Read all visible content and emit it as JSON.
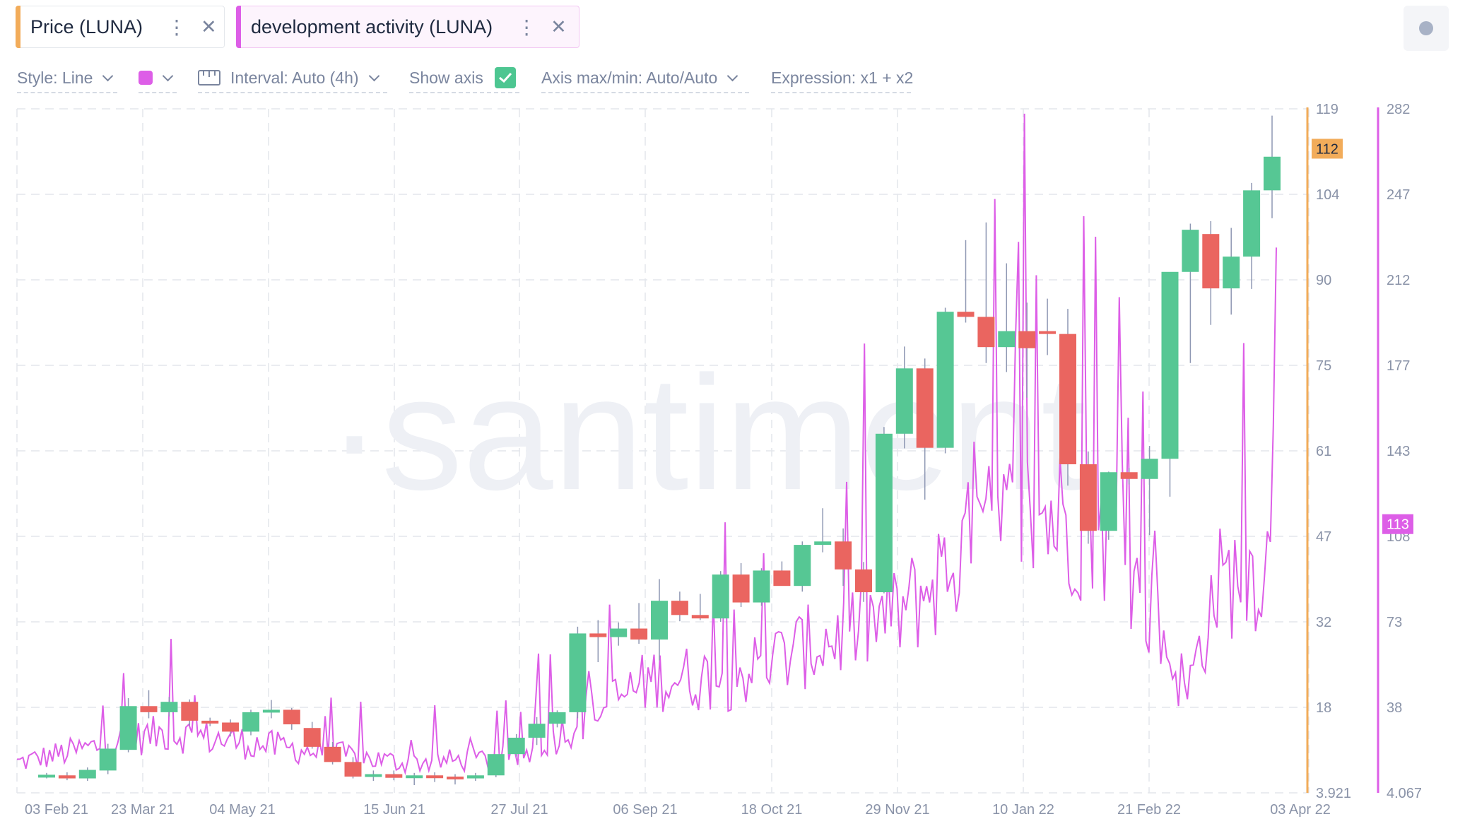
{
  "tabs": [
    {
      "label": "Price (LUNA)",
      "accent": "#f2ac5a"
    },
    {
      "label": "development activity (LUNA)",
      "accent": "#dd5ee7"
    }
  ],
  "toolbar": {
    "style": "Style: Line",
    "swatch_color": "#dd5ee7",
    "interval": "Interval: Auto (4h)",
    "show_axis": "Show axis",
    "show_axis_checked": true,
    "axis_maxmin": "Axis max/min: Auto/Auto",
    "expression": "Expression: x1 + x2"
  },
  "watermark": "·santiment",
  "chart_data": {
    "type": "candlestick+line",
    "x_labels": [
      "03 Feb 21",
      "23 Mar 21",
      "04 May 21",
      "15 Jun 21",
      "27 Jul 21",
      "06 Sep 21",
      "18 Oct 21",
      "29 Nov 21",
      "10 Jan 22",
      "21 Feb 22",
      "03 Apr 22"
    ],
    "price_axis": {
      "ticks": [
        "119",
        "104",
        "90",
        "75",
        "61",
        "47",
        "32",
        "18",
        "3.921"
      ],
      "current": "112",
      "color": "#f2ac5a"
    },
    "dev_axis": {
      "ticks": [
        "282",
        "247",
        "212",
        "177",
        "143",
        "108",
        "73",
        "38",
        "4.067"
      ],
      "current": "113",
      "color": "#dd5ee7"
    },
    "price_candles_weekly": [
      {
        "o": 6.7,
        "h": 7.2,
        "l": 6.3,
        "c": 6.9
      },
      {
        "o": 6.8,
        "h": 7.3,
        "l": 6.0,
        "c": 6.3
      },
      {
        "o": 6.3,
        "h": 8.1,
        "l": 5.9,
        "c": 7.7
      },
      {
        "o": 7.6,
        "h": 12.0,
        "l": 7.0,
        "c": 11.2
      },
      {
        "o": 11.0,
        "h": 19.5,
        "l": 10.6,
        "c": 18.2
      },
      {
        "o": 18.2,
        "h": 20.8,
        "l": 16.2,
        "c": 17.2
      },
      {
        "o": 17.2,
        "h": 19.7,
        "l": 16.5,
        "c": 18.9
      },
      {
        "o": 18.9,
        "h": 19.3,
        "l": 15.0,
        "c": 15.8
      },
      {
        "o": 15.8,
        "h": 16.3,
        "l": 14.9,
        "c": 15.5
      },
      {
        "o": 15.5,
        "h": 16.0,
        "l": 13.2,
        "c": 14.0
      },
      {
        "o": 14.0,
        "h": 17.6,
        "l": 13.4,
        "c": 17.2
      },
      {
        "o": 17.2,
        "h": 19.2,
        "l": 16.2,
        "c": 17.6
      },
      {
        "o": 17.6,
        "h": 17.9,
        "l": 14.3,
        "c": 15.2
      },
      {
        "o": 14.6,
        "h": 15.6,
        "l": 11.2,
        "c": 11.5
      },
      {
        "o": 11.5,
        "h": 12.3,
        "l": 8.6,
        "c": 9.0
      },
      {
        "o": 9.0,
        "h": 9.8,
        "l": 6.3,
        "c": 6.6
      },
      {
        "o": 6.6,
        "h": 7.6,
        "l": 5.9,
        "c": 7.0
      },
      {
        "o": 7.0,
        "h": 7.6,
        "l": 6.0,
        "c": 6.4
      },
      {
        "o": 6.4,
        "h": 7.2,
        "l": 5.2,
        "c": 6.8
      },
      {
        "o": 6.8,
        "h": 7.3,
        "l": 5.7,
        "c": 6.6
      },
      {
        "o": 6.6,
        "h": 7.0,
        "l": 5.3,
        "c": 6.3
      },
      {
        "o": 6.3,
        "h": 7.2,
        "l": 5.9,
        "c": 6.8
      },
      {
        "o": 6.8,
        "h": 9.8,
        "l": 6.5,
        "c": 10.3
      },
      {
        "o": 10.3,
        "h": 13.6,
        "l": 9.9,
        "c": 13.0
      },
      {
        "o": 13.0,
        "h": 16.4,
        "l": 11.8,
        "c": 15.3
      },
      {
        "o": 15.3,
        "h": 17.5,
        "l": 14.7,
        "c": 17.2
      },
      {
        "o": 17.2,
        "h": 31.2,
        "l": 16.2,
        "c": 30.1
      },
      {
        "o": 30.1,
        "h": 32.3,
        "l": 25.4,
        "c": 29.5
      },
      {
        "o": 29.5,
        "h": 31.9,
        "l": 28.1,
        "c": 30.9
      },
      {
        "o": 30.9,
        "h": 35.3,
        "l": 28.4,
        "c": 29.1
      },
      {
        "o": 29.1,
        "h": 39.5,
        "l": 25.7,
        "c": 35.7
      },
      {
        "o": 35.7,
        "h": 37.3,
        "l": 32.1,
        "c": 33.2
      },
      {
        "o": 33.2,
        "h": 36.9,
        "l": 32.3,
        "c": 32.6
      },
      {
        "o": 32.6,
        "h": 40.9,
        "l": 32.0,
        "c": 40.3
      },
      {
        "o": 40.3,
        "h": 42.3,
        "l": 34.6,
        "c": 35.4
      },
      {
        "o": 35.4,
        "h": 41.4,
        "l": 34.8,
        "c": 41.0
      },
      {
        "o": 41.0,
        "h": 42.6,
        "l": 38.6,
        "c": 38.3
      },
      {
        "o": 38.3,
        "h": 46.1,
        "l": 37.3,
        "c": 45.5
      },
      {
        "o": 45.5,
        "h": 51.6,
        "l": 44.2,
        "c": 46.1
      },
      {
        "o": 46.1,
        "h": 48.3,
        "l": 38.3,
        "c": 41.2
      },
      {
        "o": 41.2,
        "h": 42.5,
        "l": 35.5,
        "c": 37.2
      },
      {
        "o": 37.2,
        "h": 64.9,
        "l": 37.0,
        "c": 63.8
      },
      {
        "o": 63.8,
        "h": 78.3,
        "l": 61.4,
        "c": 74.5
      },
      {
        "o": 74.5,
        "h": 76.2,
        "l": 53.0,
        "c": 61.5
      },
      {
        "o": 61.5,
        "h": 85.1,
        "l": 60.6,
        "c": 84.4
      },
      {
        "o": 84.4,
        "h": 96.5,
        "l": 82.5,
        "c": 83.5
      },
      {
        "o": 83.5,
        "h": 99.4,
        "l": 75.4,
        "c": 78.2
      },
      {
        "o": 78.2,
        "h": 92.7,
        "l": 73.9,
        "c": 81.0
      },
      {
        "o": 81.0,
        "h": 86.0,
        "l": 69.7,
        "c": 78.0
      },
      {
        "o": 81.0,
        "h": 86.7,
        "l": 76.8,
        "c": 80.5
      },
      {
        "o": 80.5,
        "h": 84.9,
        "l": 55.3,
        "c": 58.8
      },
      {
        "o": 58.8,
        "h": 60.9,
        "l": 45.7,
        "c": 47.9
      },
      {
        "o": 47.9,
        "h": 57.6,
        "l": 46.4,
        "c": 57.5
      },
      {
        "o": 57.5,
        "h": 58.2,
        "l": 55.5,
        "c": 56.4
      },
      {
        "o": 56.4,
        "h": 61.8,
        "l": 47.2,
        "c": 59.7
      },
      {
        "o": 59.7,
        "h": 90.8,
        "l": 53.5,
        "c": 91.3
      },
      {
        "o": 91.3,
        "h": 99.2,
        "l": 75.4,
        "c": 98.2
      },
      {
        "o": 97.5,
        "h": 99.6,
        "l": 82.1,
        "c": 88.5
      },
      {
        "o": 88.5,
        "h": 98.5,
        "l": 83.9,
        "c": 93.8
      },
      {
        "o": 93.8,
        "h": 106.0,
        "l": 88.4,
        "c": 104.7
      },
      {
        "o": 104.7,
        "h": 117.8,
        "l": 100.1,
        "c": 110.6
      }
    ],
    "dev_activity_series": "daily values 2021-02-03 to 2022-04-03, range ~10-280"
  }
}
